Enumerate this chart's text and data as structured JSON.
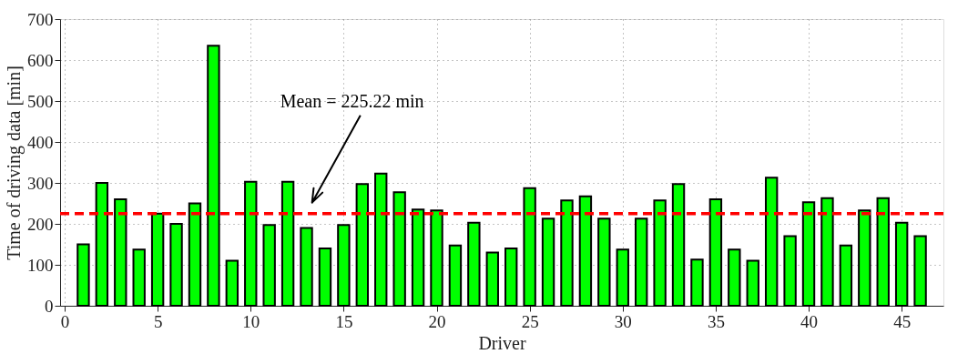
{
  "chart_data": {
    "type": "bar",
    "xlabel": "Driver",
    "ylabel": "Time of driving data [min]",
    "x": [
      1,
      2,
      3,
      4,
      5,
      6,
      7,
      8,
      9,
      10,
      11,
      12,
      13,
      14,
      15,
      16,
      17,
      18,
      19,
      20,
      21,
      22,
      23,
      24,
      25,
      26,
      27,
      28,
      29,
      30,
      31,
      32,
      33,
      34,
      35,
      36,
      37,
      38,
      39,
      40,
      41,
      42,
      43,
      44,
      45,
      46
    ],
    "series": [
      {
        "color": "#00ff00",
        "values": [
          150,
          300,
          260,
          137,
          225,
          200,
          250,
          635,
          110,
          303,
          197,
          303,
          190,
          140,
          197,
          297,
          323,
          277,
          235,
          233,
          147,
          203,
          130,
          140,
          287,
          213,
          257,
          267,
          213,
          137,
          213,
          257,
          297,
          113,
          260,
          137,
          110,
          313,
          170,
          253,
          263,
          147,
          233,
          263,
          203,
          170
        ]
      }
    ],
    "xlim": [
      0,
      47
    ],
    "xticks": [
      0,
      5,
      10,
      15,
      20,
      25,
      30,
      35,
      40,
      45
    ],
    "ylim": [
      0,
      700
    ],
    "yticks": [
      0,
      100,
      200,
      300,
      400,
      500,
      600,
      700
    ],
    "grid": true,
    "ref_lines": [
      {
        "axis": "y",
        "value": 225.22,
        "color": "#ff0000",
        "line_style": "dashed"
      }
    ],
    "annotations": [
      "Mean = 225.22 min"
    ]
  }
}
